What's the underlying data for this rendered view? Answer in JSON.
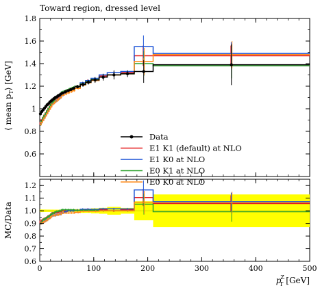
{
  "chart_data": {
    "type": "line",
    "title": "Toward region, dressed level",
    "xlabel_main": "p",
    "xlabel_sup": "Z",
    "xlabel_sub": "T",
    "xlabel_unit": "[GeV]",
    "ylabel_top": "⟨ mean p",
    "ylabel_top_sub": "T",
    "ylabel_top_unit": "⟩ [GeV]",
    "ylabel_ratio": "MC/Data",
    "xlim": [
      0,
      500
    ],
    "ylim_top": [
      0.4,
      1.8
    ],
    "ylim_ratio": [
      0.6,
      1.25
    ],
    "x_ticks": [
      "0",
      "100",
      "200",
      "300",
      "400",
      "500"
    ],
    "y_ticks_top": [
      "0.6",
      "0.8",
      "1",
      "1.2",
      "1.4",
      "1.6",
      "1.8"
    ],
    "y_ticks_ratio": [
      "0.6",
      "0.7",
      "0.8",
      "0.9",
      "1.0",
      "1.1",
      "1.2"
    ],
    "bins": [
      [
        0,
        2.5
      ],
      [
        2.5,
        5
      ],
      [
        5,
        7.5
      ],
      [
        7.5,
        10
      ],
      [
        10,
        12.5
      ],
      [
        12.5,
        15
      ],
      [
        15,
        17.5
      ],
      [
        17.5,
        20
      ],
      [
        20,
        22.5
      ],
      [
        22.5,
        25
      ],
      [
        25,
        27.5
      ],
      [
        27.5,
        30
      ],
      [
        30,
        32.5
      ],
      [
        32.5,
        35
      ],
      [
        35,
        37.5
      ],
      [
        37.5,
        40
      ],
      [
        40,
        45
      ],
      [
        45,
        50
      ],
      [
        50,
        55
      ],
      [
        55,
        60
      ],
      [
        60,
        65
      ],
      [
        65,
        75
      ],
      [
        75,
        85
      ],
      [
        85,
        95
      ],
      [
        95,
        110
      ],
      [
        110,
        125
      ],
      [
        125,
        150
      ],
      [
        150,
        175
      ],
      [
        175,
        210
      ],
      [
        210,
        500
      ]
    ],
    "data": {
      "name": "Data",
      "color": "#000000",
      "x": [
        1.25,
        3.75,
        6.25,
        8.75,
        11.25,
        13.75,
        16.25,
        18.75,
        21.25,
        23.75,
        26.25,
        28.75,
        31.25,
        33.75,
        36.25,
        38.75,
        42.5,
        47.5,
        52.5,
        57.5,
        62.5,
        70,
        80,
        90,
        102.5,
        117.5,
        137.5,
        162.5,
        192.5,
        355
      ],
      "y": [
        0.955,
        0.975,
        0.99,
        1.005,
        1.02,
        1.035,
        1.045,
        1.06,
        1.07,
        1.08,
        1.09,
        1.1,
        1.105,
        1.115,
        1.12,
        1.13,
        1.14,
        1.15,
        1.16,
        1.17,
        1.18,
        1.195,
        1.215,
        1.235,
        1.255,
        1.28,
        1.3,
        1.31,
        1.33,
        1.39
      ],
      "err": [
        0.01,
        0.01,
        0.01,
        0.01,
        0.01,
        0.01,
        0.01,
        0.01,
        0.01,
        0.01,
        0.01,
        0.01,
        0.01,
        0.01,
        0.01,
        0.01,
        0.01,
        0.01,
        0.012,
        0.012,
        0.012,
        0.015,
        0.02,
        0.02,
        0.025,
        0.03,
        0.04,
        0.03,
        0.1,
        0.18
      ]
    },
    "series": [
      {
        "name": "E1 K1 (default) at NLO",
        "color": "#e41a1c",
        "values": [
          0.87,
          0.9,
          0.92,
          0.94,
          0.96,
          0.98,
          1.0,
          1.02,
          1.04,
          1.06,
          1.07,
          1.08,
          1.09,
          1.1,
          1.11,
          1.12,
          1.14,
          1.15,
          1.16,
          1.17,
          1.18,
          1.2,
          1.22,
          1.25,
          1.26,
          1.29,
          1.3,
          1.32,
          1.47,
          1.47
        ]
      },
      {
        "name": "E1 K0 at NLO",
        "color": "#1a52d6",
        "values": [
          0.86,
          0.88,
          0.9,
          0.92,
          0.94,
          0.96,
          0.98,
          1.0,
          1.02,
          1.04,
          1.05,
          1.06,
          1.07,
          1.08,
          1.09,
          1.1,
          1.12,
          1.14,
          1.16,
          1.17,
          1.18,
          1.2,
          1.23,
          1.25,
          1.27,
          1.3,
          1.32,
          1.33,
          1.55,
          1.49
        ]
      },
      {
        "name": "E0 K1 at NLO",
        "color": "#2ca02c",
        "values": [
          0.86,
          0.89,
          0.92,
          0.94,
          0.96,
          0.98,
          1.0,
          1.02,
          1.04,
          1.06,
          1.07,
          1.09,
          1.1,
          1.11,
          1.12,
          1.13,
          1.15,
          1.16,
          1.17,
          1.18,
          1.19,
          1.2,
          1.22,
          1.24,
          1.26,
          1.28,
          1.3,
          1.31,
          1.4,
          1.38
        ]
      },
      {
        "name": "E0 K0 at NLO",
        "color": "#ff8c1a",
        "values": [
          0.86,
          0.88,
          0.9,
          0.92,
          0.94,
          0.96,
          0.98,
          1.0,
          1.02,
          1.04,
          1.05,
          1.06,
          1.07,
          1.08,
          1.09,
          1.1,
          1.12,
          1.13,
          1.14,
          1.15,
          1.16,
          1.18,
          1.21,
          1.23,
          1.25,
          1.28,
          1.3,
          1.31,
          1.42,
          1.48
        ]
      }
    ],
    "band_color": "#ffff00",
    "band_core_color": "#e6e600",
    "legend_position": "lower-right",
    "grid": false
  }
}
